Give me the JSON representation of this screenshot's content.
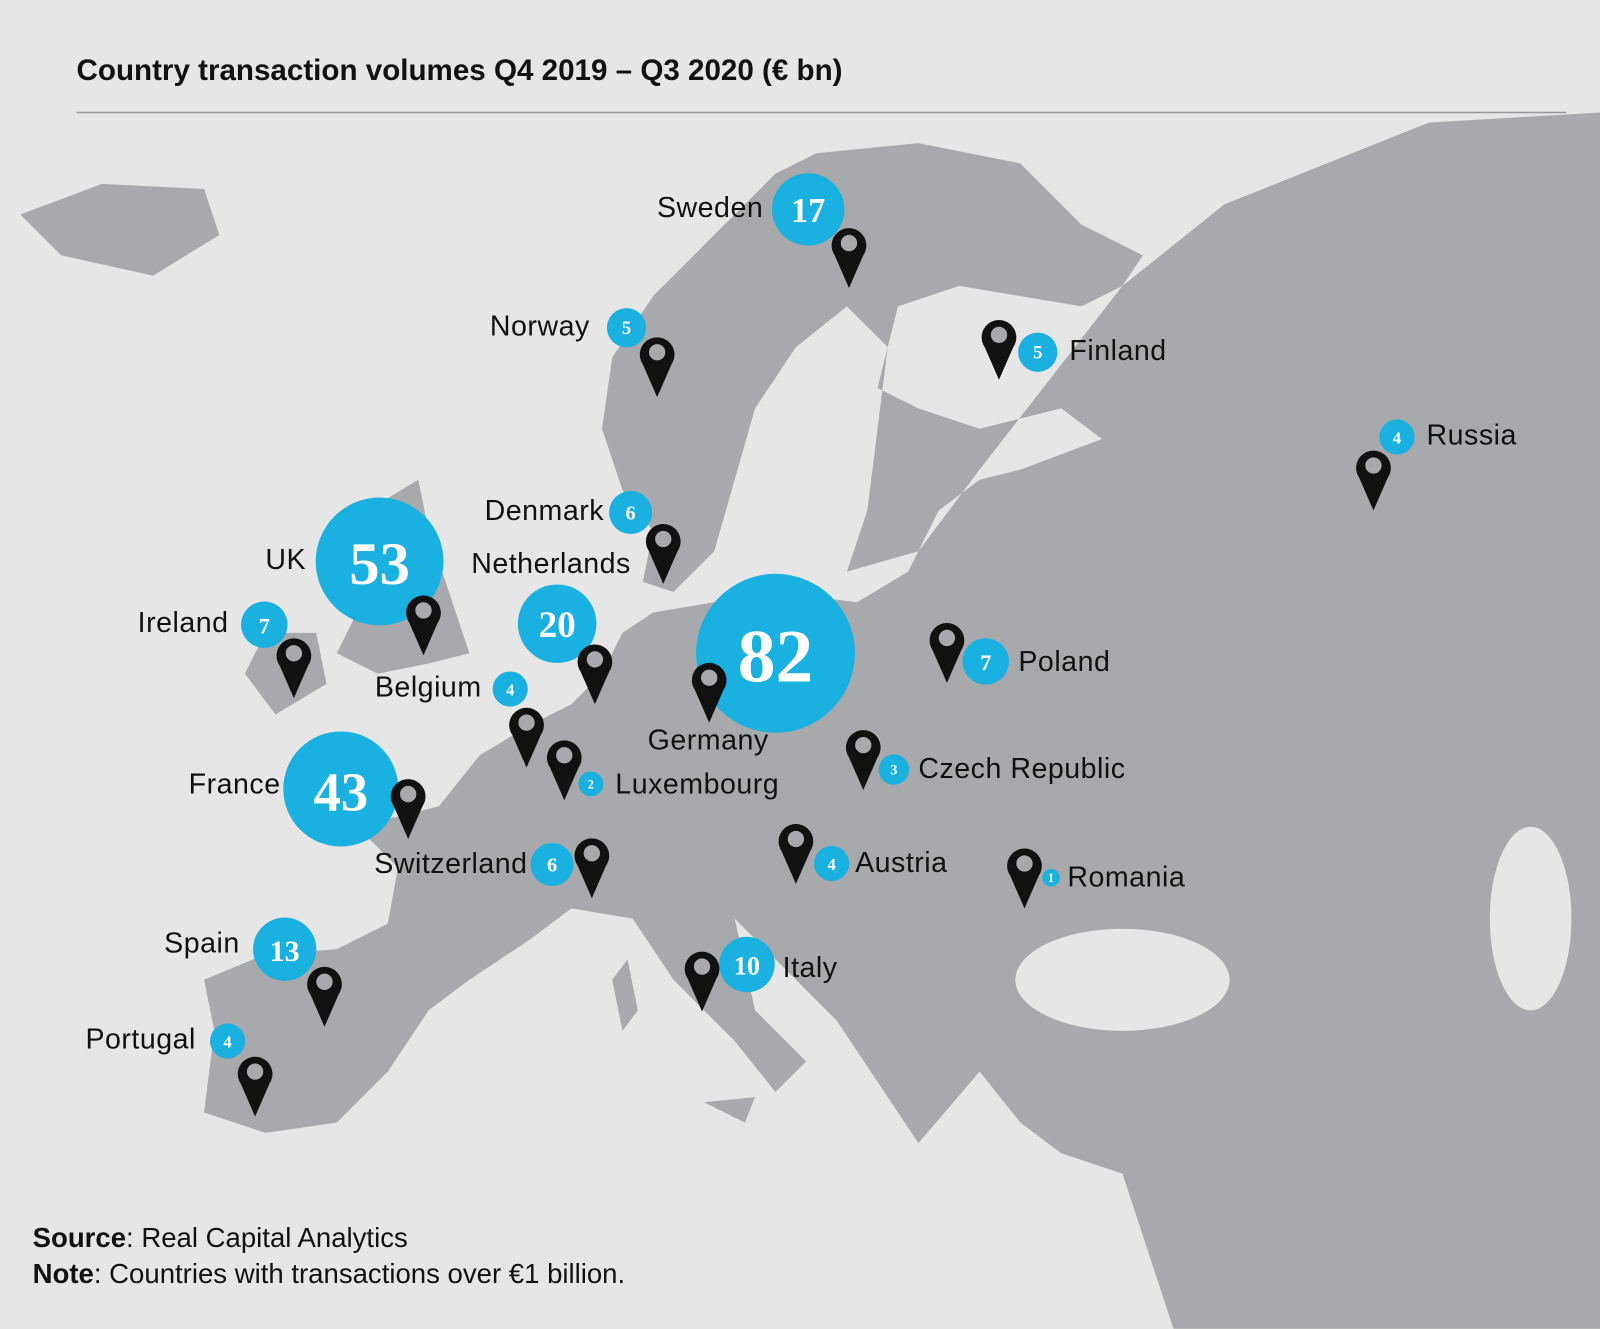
{
  "title": "Country transaction volumes Q4 2019 – Q3 2020 (€ bn)",
  "bubble_color": "#1ab0df",
  "countries": [
    {
      "name": "Sweden",
      "value": 17
    },
    {
      "name": "Norway",
      "value": 5
    },
    {
      "name": "Finland",
      "value": 5
    },
    {
      "name": "Russia",
      "value": 4
    },
    {
      "name": "Denmark",
      "value": 6
    },
    {
      "name": "Netherlands",
      "value": 20
    },
    {
      "name": "UK",
      "value": 53
    },
    {
      "name": "Ireland",
      "value": 7
    },
    {
      "name": "Belgium",
      "value": 4
    },
    {
      "name": "Germany",
      "value": 82
    },
    {
      "name": "Poland",
      "value": 7
    },
    {
      "name": "France",
      "value": 43
    },
    {
      "name": "Luxembourg",
      "value": 2
    },
    {
      "name": "Czech Republic",
      "value": 3
    },
    {
      "name": "Switzerland",
      "value": 6
    },
    {
      "name": "Austria",
      "value": 4
    },
    {
      "name": "Romania",
      "value": 1
    },
    {
      "name": "Spain",
      "value": 13
    },
    {
      "name": "Italy",
      "value": 10
    },
    {
      "name": "Portugal",
      "value": 4
    }
  ],
  "source": {
    "label": "Source",
    "text": ": Real Capital Analytics"
  },
  "note": {
    "label": "Note",
    "text": ": Countries with transactions over €1 billion."
  }
}
